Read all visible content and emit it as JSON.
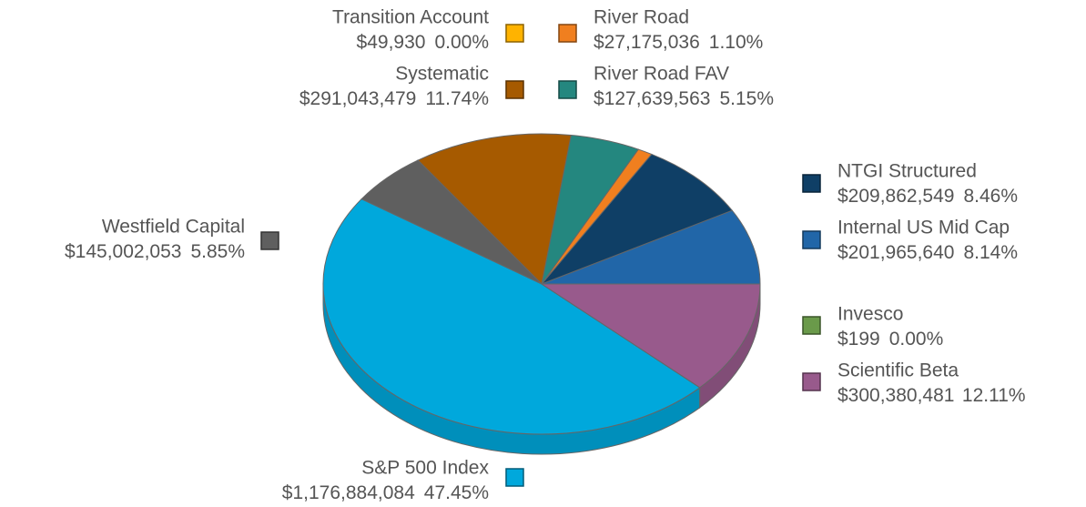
{
  "chart_data": {
    "type": "pie",
    "categories": [
      "Internal US Mid Cap",
      "NTGI Structured",
      "River Road",
      "River Road FAV",
      "Systematic",
      "Transition Account",
      "Westfield Capital",
      "S&P 500 Index",
      "Invesco",
      "Scientific Beta"
    ],
    "values": [
      201965640,
      209862549,
      27175036,
      127639563,
      291043479,
      49930,
      145002053,
      1176884084,
      199,
      300380481
    ],
    "value_labels": [
      "$201,965,640",
      "$209,862,549",
      "$27,175,036",
      "$127,639,563",
      "$291,043,479",
      "$49,930",
      "$145,002,053",
      "$1,176,884,084",
      "$199",
      "$300,380,481"
    ],
    "percents": [
      8.14,
      8.46,
      1.1,
      5.15,
      11.74,
      0.0,
      5.85,
      47.45,
      0.0,
      12.11
    ],
    "percent_labels": [
      "8.14%",
      "8.46%",
      "1.10%",
      "5.15%",
      "11.74%",
      "0.00%",
      "5.85%",
      "47.45%",
      "0.00%",
      "12.11%"
    ],
    "colors": [
      "#2166a8",
      "#0f3f66",
      "#f07f1f",
      "#24877f",
      "#a65a00",
      "#ffb300",
      "#5f5f5f",
      "#00a8dc",
      "#6a9a4a",
      "#985a8c"
    ]
  }
}
